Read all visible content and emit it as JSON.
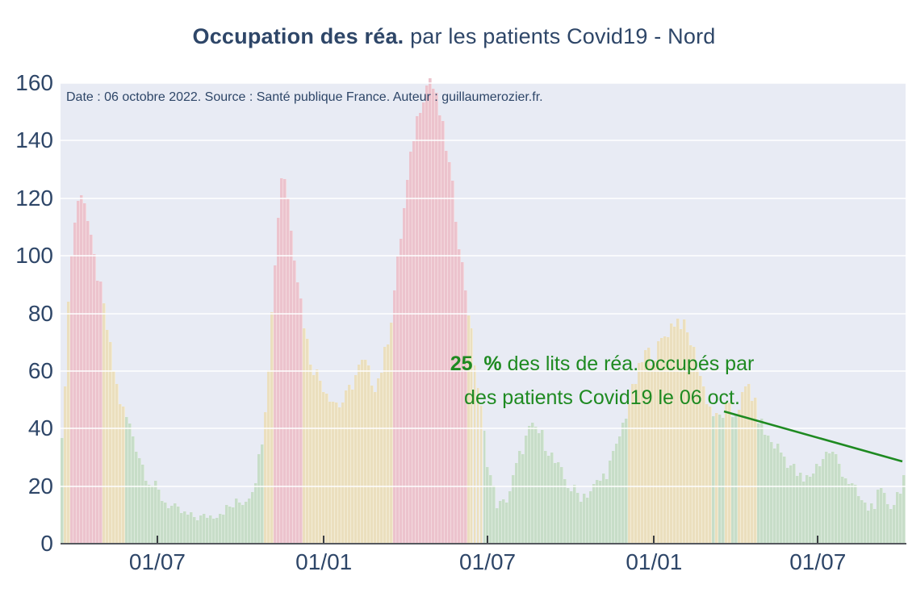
{
  "title": {
    "bold": "Occupation des réa.",
    "regular": " par les patients Covid19 - Nord",
    "color": "#2e4668"
  },
  "subtitle": "Date : 06 octobre 2022. Source : Santé publique France. Auteur : guillaumerozier.fr.",
  "annotation": {
    "bold": "25  %",
    "line1_rest": " des lits de réa. occupés par",
    "line2": "des patients Covid19 le 06 oct.",
    "color": "#1e8a21"
  },
  "chart_data": {
    "type": "bar",
    "title": "Occupation des réa. par les patients Covid19 - Nord",
    "xlabel": "",
    "ylabel": "",
    "ylim": [
      0,
      160
    ],
    "yticks": [
      0,
      20,
      40,
      60,
      80,
      100,
      120,
      140,
      160
    ],
    "x_start": "2020-03-16",
    "x_end": "2022-10-06",
    "xticks": [
      {
        "label": "01/07",
        "date": "2020-07-01"
      },
      {
        "label": "01/01",
        "date": "2021-01-01"
      },
      {
        "label": "01/07",
        "date": "2021-07-01"
      },
      {
        "label": "01/01",
        "date": "2022-01-01"
      },
      {
        "label": "01/07",
        "date": "2022-07-01"
      }
    ],
    "grid": "horizontal-white",
    "legend": "none",
    "plot_background": "#e8ebf4",
    "color_thresholds": {
      "mid_from": 45,
      "high_from": 85
    },
    "colors": {
      "low_fill": "#c7ddc8",
      "low_edge": "#dbeadc",
      "mid_fill": "#ebdfbe",
      "mid_edge": "#f3ecd6",
      "high_fill": "#ecc3cd",
      "high_edge": "#f3d9de"
    },
    "points": [
      [
        "2020-03-16",
        26
      ],
      [
        "2020-03-19",
        40
      ],
      [
        "2020-03-22",
        62
      ],
      [
        "2020-03-26",
        92
      ],
      [
        "2020-03-31",
        110
      ],
      [
        "2020-04-05",
        119
      ],
      [
        "2020-04-09",
        124
      ],
      [
        "2020-04-13",
        117
      ],
      [
        "2020-04-18",
        106
      ],
      [
        "2020-04-24",
        96
      ],
      [
        "2020-05-01",
        86
      ],
      [
        "2020-05-08",
        72
      ],
      [
        "2020-05-15",
        58
      ],
      [
        "2020-05-22",
        48
      ],
      [
        "2020-05-29",
        43
      ],
      [
        "2020-06-05",
        37
      ],
      [
        "2020-06-13",
        29
      ],
      [
        "2020-06-21",
        23
      ],
      [
        "2020-06-29",
        19
      ],
      [
        "2020-07-09",
        15
      ],
      [
        "2020-07-20",
        12
      ],
      [
        "2020-08-01",
        10
      ],
      [
        "2020-08-15",
        9
      ],
      [
        "2020-09-01",
        10
      ],
      [
        "2020-09-15",
        12
      ],
      [
        "2020-09-28",
        14
      ],
      [
        "2020-10-08",
        16
      ],
      [
        "2020-10-16",
        21
      ],
      [
        "2020-10-23",
        32
      ],
      [
        "2020-10-29",
        50
      ],
      [
        "2020-11-03",
        72
      ],
      [
        "2020-11-08",
        98
      ],
      [
        "2020-11-13",
        120
      ],
      [
        "2020-11-16",
        131
      ],
      [
        "2020-11-20",
        126
      ],
      [
        "2020-11-25",
        113
      ],
      [
        "2020-12-01",
        97
      ],
      [
        "2020-12-06",
        86
      ],
      [
        "2020-12-12",
        73
      ],
      [
        "2020-12-18",
        63
      ],
      [
        "2020-12-26",
        58
      ],
      [
        "2021-01-03",
        54
      ],
      [
        "2021-01-11",
        50
      ],
      [
        "2021-01-19",
        48
      ],
      [
        "2021-01-26",
        51
      ],
      [
        "2021-02-02",
        56
      ],
      [
        "2021-02-09",
        61
      ],
      [
        "2021-02-15",
        63
      ],
      [
        "2021-02-21",
        58
      ],
      [
        "2021-02-27",
        55
      ],
      [
        "2021-03-05",
        60
      ],
      [
        "2021-03-11",
        68
      ],
      [
        "2021-03-17",
        80
      ],
      [
        "2021-03-23",
        96
      ],
      [
        "2021-03-29",
        112
      ],
      [
        "2021-04-04",
        127
      ],
      [
        "2021-04-10",
        141
      ],
      [
        "2021-04-16",
        151
      ],
      [
        "2021-04-22",
        157
      ],
      [
        "2021-04-28",
        162
      ],
      [
        "2021-05-04",
        156
      ],
      [
        "2021-05-10",
        148
      ],
      [
        "2021-05-16",
        138
      ],
      [
        "2021-05-22",
        126
      ],
      [
        "2021-05-28",
        111
      ],
      [
        "2021-06-03",
        96
      ],
      [
        "2021-06-08",
        86
      ],
      [
        "2021-06-14",
        71
      ],
      [
        "2021-06-20",
        56
      ],
      [
        "2021-06-26",
        42
      ],
      [
        "2021-07-01",
        30
      ],
      [
        "2021-07-07",
        20
      ],
      [
        "2021-07-13",
        13
      ],
      [
        "2021-07-20",
        14
      ],
      [
        "2021-07-27",
        19
      ],
      [
        "2021-08-03",
        27
      ],
      [
        "2021-08-10",
        34
      ],
      [
        "2021-08-17",
        39
      ],
      [
        "2021-08-24",
        40
      ],
      [
        "2021-08-31",
        37
      ],
      [
        "2021-09-07",
        33
      ],
      [
        "2021-09-14",
        28
      ],
      [
        "2021-09-21",
        24
      ],
      [
        "2021-09-28",
        21
      ],
      [
        "2021-10-05",
        18
      ],
      [
        "2021-10-13",
        17
      ],
      [
        "2021-10-21",
        18
      ],
      [
        "2021-10-29",
        20
      ],
      [
        "2021-11-06",
        23
      ],
      [
        "2021-11-13",
        27
      ],
      [
        "2021-11-20",
        32
      ],
      [
        "2021-11-27",
        40
      ],
      [
        "2021-12-04",
        48
      ],
      [
        "2021-12-11",
        55
      ],
      [
        "2021-12-18",
        62
      ],
      [
        "2021-12-24",
        67
      ],
      [
        "2021-12-30",
        65
      ],
      [
        "2022-01-05",
        67
      ],
      [
        "2022-01-11",
        71
      ],
      [
        "2022-01-17",
        74
      ],
      [
        "2022-01-23",
        77
      ],
      [
        "2022-01-29",
        78
      ],
      [
        "2022-02-04",
        75
      ],
      [
        "2022-02-10",
        71
      ],
      [
        "2022-02-16",
        65
      ],
      [
        "2022-02-22",
        58
      ],
      [
        "2022-02-28",
        51
      ],
      [
        "2022-03-06",
        46
      ],
      [
        "2022-03-12",
        43
      ],
      [
        "2022-03-18",
        45
      ],
      [
        "2022-03-24",
        47
      ],
      [
        "2022-03-30",
        44
      ],
      [
        "2022-04-05",
        48
      ],
      [
        "2022-04-11",
        52
      ],
      [
        "2022-04-16",
        55
      ],
      [
        "2022-04-22",
        49
      ],
      [
        "2022-04-28",
        43
      ],
      [
        "2022-05-05",
        38
      ],
      [
        "2022-05-12",
        35
      ],
      [
        "2022-05-19",
        33
      ],
      [
        "2022-05-26",
        30
      ],
      [
        "2022-06-02",
        27
      ],
      [
        "2022-06-09",
        24
      ],
      [
        "2022-06-16",
        21
      ],
      [
        "2022-06-23",
        24
      ],
      [
        "2022-06-30",
        27
      ],
      [
        "2022-07-07",
        30
      ],
      [
        "2022-07-14",
        32
      ],
      [
        "2022-07-21",
        30
      ],
      [
        "2022-07-28",
        26
      ],
      [
        "2022-08-04",
        22
      ],
      [
        "2022-08-11",
        18
      ],
      [
        "2022-08-18",
        15
      ],
      [
        "2022-08-25",
        12
      ],
      [
        "2022-09-01",
        14
      ],
      [
        "2022-09-08",
        17
      ],
      [
        "2022-09-15",
        15
      ],
      [
        "2022-09-22",
        13
      ],
      [
        "2022-09-28",
        18
      ],
      [
        "2022-10-03",
        22
      ],
      [
        "2022-10-06",
        25
      ]
    ]
  }
}
